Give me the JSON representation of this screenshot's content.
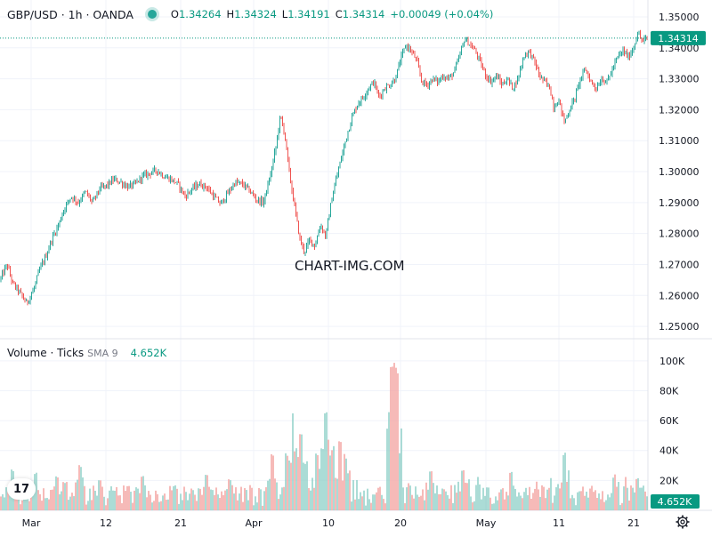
{
  "header": {
    "symbol": "GBP/USD · 1h · OANDA",
    "o_label": "O",
    "o_value": "1.34264",
    "h_label": "H",
    "h_value": "1.34324",
    "l_label": "L",
    "l_value": "1.34191",
    "c_label": "C",
    "c_value": "1.34314",
    "change": "+0.00049 (+0.04%)"
  },
  "volume_header": {
    "title": "Volume · Ticks",
    "sma_label": "SMA 9",
    "sma_value": "4.652K"
  },
  "watermark": "CHART-IMG.COM",
  "logo_text": "17",
  "colors": {
    "up": "#26a69a",
    "down": "#ef5350",
    "vol_up": "#8fd0c8",
    "vol_down": "#f4a3a1",
    "last_price": "#089981",
    "grid": "#f0f3fa",
    "text": "#131722"
  },
  "icons": {
    "settings": "gear-icon",
    "live": "live-dot-icon",
    "logo": "tradingview-logo-icon"
  },
  "chart_data": [
    {
      "type": "candlestick",
      "title": "GBP/USD · 1h · OANDA",
      "x_ticks": [
        "Mar",
        "12",
        "21",
        "Apr",
        "10",
        "20",
        "May",
        "11",
        "21"
      ],
      "y_ticks": [
        1.25,
        1.26,
        1.27,
        1.28,
        1.29,
        1.3,
        1.31,
        1.32,
        1.33,
        1.34,
        1.35
      ],
      "ylim": [
        1.246,
        1.352
      ],
      "last_price": 1.34314,
      "grid": true,
      "path": [
        [
          0,
          1.265
        ],
        [
          8,
          1.27
        ],
        [
          14,
          1.264
        ],
        [
          22,
          1.261
        ],
        [
          30,
          1.2575
        ],
        [
          38,
          1.262
        ],
        [
          44,
          1.268
        ],
        [
          52,
          1.273
        ],
        [
          58,
          1.278
        ],
        [
          66,
          1.283
        ],
        [
          72,
          1.288
        ],
        [
          80,
          1.292
        ],
        [
          88,
          1.29
        ],
        [
          96,
          1.2935
        ],
        [
          104,
          1.29
        ],
        [
          112,
          1.2945
        ],
        [
          120,
          1.2955
        ],
        [
          128,
          1.2975
        ],
        [
          136,
          1.2965
        ],
        [
          144,
          1.295
        ],
        [
          152,
          1.296
        ],
        [
          160,
          1.2985
        ],
        [
          168,
          1.2995
        ],
        [
          176,
          1.3005
        ],
        [
          184,
          1.2985
        ],
        [
          192,
          1.2975
        ],
        [
          200,
          1.296
        ],
        [
          208,
          1.292
        ],
        [
          216,
          1.2945
        ],
        [
          224,
          1.296
        ],
        [
          232,
          1.295
        ],
        [
          240,
          1.292
        ],
        [
          248,
          1.2895
        ],
        [
          256,
          1.293
        ],
        [
          264,
          1.2965
        ],
        [
          272,
          1.296
        ],
        [
          280,
          1.294
        ],
        [
          288,
          1.291
        ],
        [
          296,
          1.29
        ],
        [
          304,
          1.299
        ],
        [
          310,
          1.308
        ],
        [
          315,
          1.318
        ],
        [
          320,
          1.312
        ],
        [
          324,
          1.302
        ],
        [
          328,
          1.294
        ],
        [
          332,
          1.287
        ],
        [
          337,
          1.278
        ],
        [
          342,
          1.274
        ],
        [
          348,
          1.278
        ],
        [
          354,
          1.276
        ],
        [
          360,
          1.283
        ],
        [
          366,
          1.279
        ],
        [
          372,
          1.29
        ],
        [
          378,
          1.298
        ],
        [
          384,
          1.305
        ],
        [
          390,
          1.312
        ],
        [
          396,
          1.318
        ],
        [
          402,
          1.322
        ],
        [
          408,
          1.324
        ],
        [
          414,
          1.327
        ],
        [
          420,
          1.329
        ],
        [
          426,
          1.324
        ],
        [
          432,
          1.327
        ],
        [
          438,
          1.328
        ],
        [
          444,
          1.33
        ],
        [
          450,
          1.336
        ],
        [
          456,
          1.341
        ],
        [
          462,
          1.339
        ],
        [
          468,
          1.336
        ],
        [
          474,
          1.329
        ],
        [
          480,
          1.328
        ],
        [
          486,
          1.33
        ],
        [
          492,
          1.329
        ],
        [
          498,
          1.331
        ],
        [
          504,
          1.33
        ],
        [
          510,
          1.332
        ],
        [
          516,
          1.337
        ],
        [
          522,
          1.343
        ],
        [
          528,
          1.341
        ],
        [
          534,
          1.339
        ],
        [
          540,
          1.335
        ],
        [
          546,
          1.331
        ],
        [
          552,
          1.329
        ],
        [
          558,
          1.331
        ],
        [
          564,
          1.328
        ],
        [
          570,
          1.33
        ],
        [
          576,
          1.327
        ],
        [
          582,
          1.33
        ],
        [
          588,
          1.337
        ],
        [
          594,
          1.339
        ],
        [
          600,
          1.336
        ],
        [
          606,
          1.331
        ],
        [
          612,
          1.329
        ],
        [
          618,
          1.327
        ],
        [
          622,
          1.321
        ],
        [
          628,
          1.323
        ],
        [
          634,
          1.316
        ],
        [
          640,
          1.32
        ],
        [
          646,
          1.324
        ],
        [
          652,
          1.33
        ],
        [
          658,
          1.333
        ],
        [
          664,
          1.329
        ],
        [
          670,
          1.327
        ],
        [
          676,
          1.33
        ],
        [
          682,
          1.329
        ],
        [
          688,
          1.333
        ],
        [
          694,
          1.337
        ],
        [
          700,
          1.339
        ],
        [
          706,
          1.337
        ],
        [
          712,
          1.34
        ],
        [
          716,
          1.345
        ],
        [
          722,
          1.342
        ],
        [
          727,
          1.3431
        ]
      ]
    },
    {
      "type": "bar",
      "title": "Volume · Ticks",
      "y_ticks": [
        "20K",
        "40K",
        "60K",
        "80K",
        "100K"
      ],
      "ylim": [
        0,
        110000
      ],
      "last_value_label": "4.652K",
      "spikes": [
        [
          14,
          28000
        ],
        [
          40,
          27000
        ],
        [
          64,
          24000
        ],
        [
          90,
          32000
        ],
        [
          112,
          22000
        ],
        [
          160,
          24000
        ],
        [
          232,
          24000
        ],
        [
          258,
          22000
        ],
        [
          306,
          38000
        ],
        [
          322,
          40000
        ],
        [
          329,
          65000
        ],
        [
          338,
          52000
        ],
        [
          345,
          36000
        ],
        [
          356,
          41000
        ],
        [
          362,
          42000
        ],
        [
          366,
          68000
        ],
        [
          374,
          44000
        ],
        [
          382,
          47000
        ],
        [
          388,
          38000
        ],
        [
          440,
          106000
        ],
        [
          443,
          102000
        ],
        [
          446,
          97000
        ],
        [
          484,
          28000
        ],
        [
          520,
          29000
        ],
        [
          574,
          26000
        ],
        [
          634,
          39000
        ],
        [
          690,
          24000
        ],
        [
          716,
          22000
        ]
      ]
    }
  ]
}
